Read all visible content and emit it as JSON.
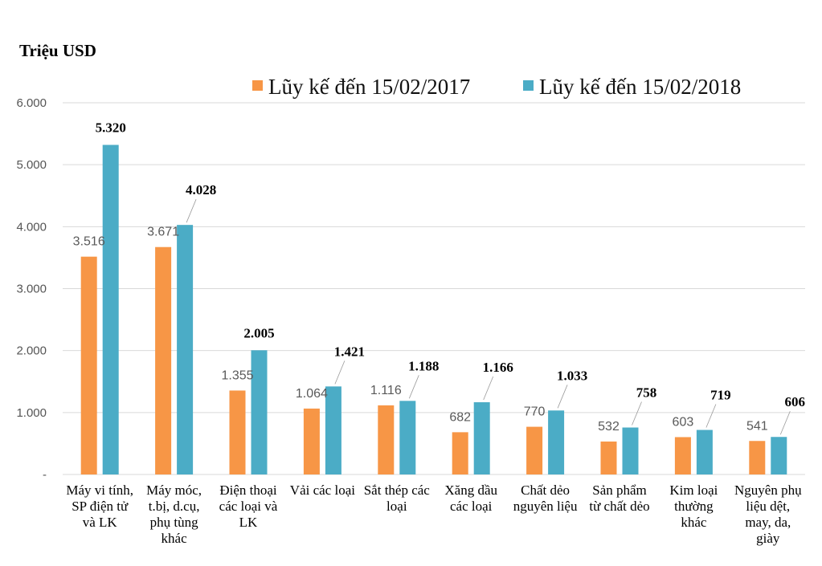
{
  "chart_data": {
    "type": "bar",
    "unit_label": "Triệu USD",
    "categories": [
      [
        "Máy vi tính,",
        "SP điện tử",
        "và LK"
      ],
      [
        "Máy móc,",
        "t.bị, d.cụ,",
        "phụ tùng",
        "khác"
      ],
      [
        "Điện thoại",
        "các loại và",
        "LK"
      ],
      [
        "Vải các loại"
      ],
      [
        "Sắt thép các",
        "loại"
      ],
      [
        "Xăng dầu",
        "các loại"
      ],
      [
        "Chất dẻo",
        "nguyên liệu"
      ],
      [
        "Sản phẩm",
        "từ chất dẻo"
      ],
      [
        "Kim loại",
        "thường",
        "khác"
      ],
      [
        "Nguyên phụ",
        "liệu dệt,",
        "may, da,",
        "giày"
      ]
    ],
    "series": [
      {
        "name": "Lũy kế đến 15/02/2017",
        "color": "#f79646",
        "values": [
          3516,
          3671,
          1355,
          1064,
          1116,
          682,
          770,
          532,
          603,
          541
        ],
        "labels": [
          "3.516",
          "3.671",
          "1.355",
          "1.064",
          "1.116",
          "682",
          "770",
          "532",
          "603",
          "541"
        ]
      },
      {
        "name": "Lũy kế đến 15/02/2018",
        "color": "#4bacc6",
        "values": [
          5320,
          4028,
          2005,
          1421,
          1188,
          1166,
          1033,
          758,
          719,
          606
        ],
        "labels": [
          "5.320",
          "4.028",
          "2.005",
          "1.421",
          "1.188",
          "1.166",
          "1.033",
          "758",
          "719",
          "606"
        ]
      }
    ],
    "y_ticks": [
      0,
      1000,
      2000,
      3000,
      4000,
      5000,
      6000
    ],
    "y_tick_labels": [
      "-",
      "1.000",
      "2.000",
      "3.000",
      "4.000",
      "5.000",
      "6.000"
    ],
    "ylim": [
      0,
      6000
    ],
    "grid": true,
    "legend_position": "top"
  }
}
